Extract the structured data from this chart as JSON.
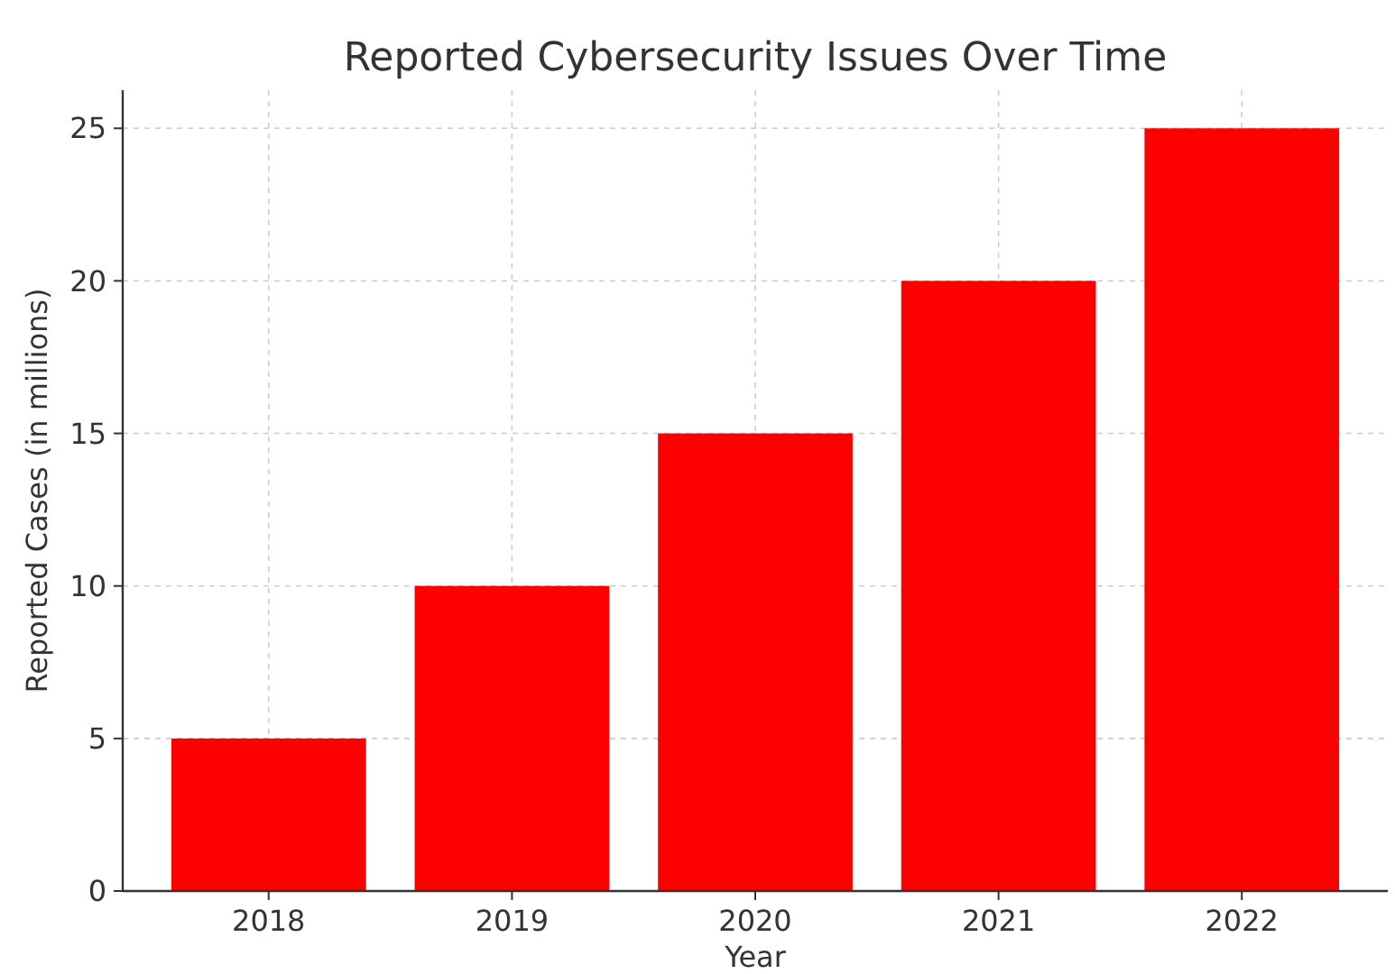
{
  "chart_data": {
    "type": "bar",
    "title": "Reported Cybersecurity Issues Over Time",
    "xlabel": "Year",
    "ylabel": "Reported Cases (in millions)",
    "categories": [
      "2018",
      "2019",
      "2020",
      "2021",
      "2022"
    ],
    "values": [
      5,
      10,
      15,
      20,
      25
    ],
    "color": "#ff0000",
    "ylim": [
      0,
      26.25
    ],
    "yticks": [
      0,
      5,
      10,
      15,
      20,
      25
    ],
    "grid": true
  }
}
